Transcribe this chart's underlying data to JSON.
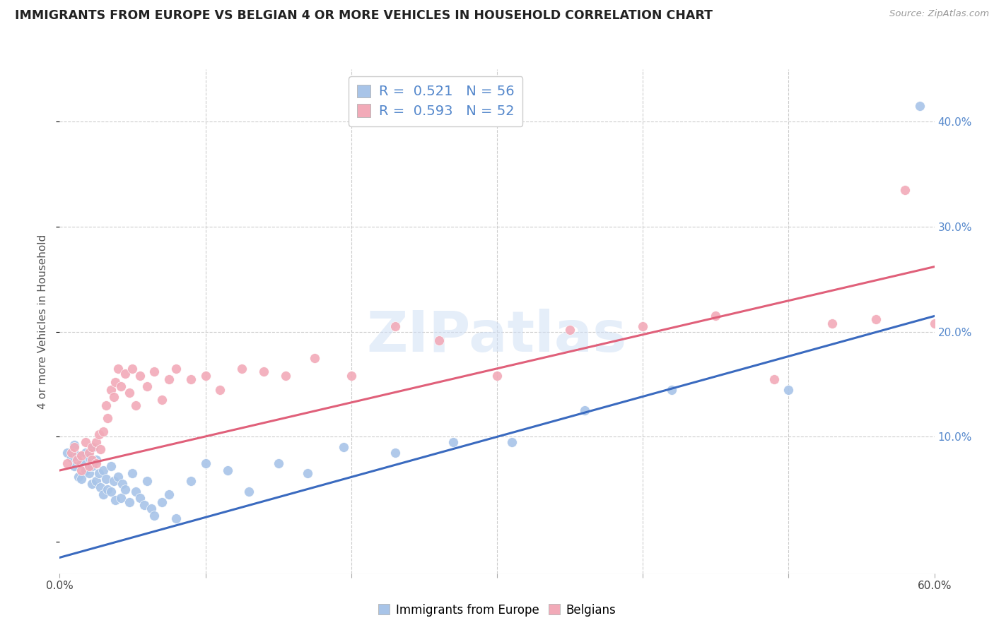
{
  "title": "IMMIGRANTS FROM EUROPE VS BELGIAN 4 OR MORE VEHICLES IN HOUSEHOLD CORRELATION CHART",
  "source": "Source: ZipAtlas.com",
  "ylabel": "4 or more Vehicles in Household",
  "ytick_vals": [
    0.0,
    0.1,
    0.2,
    0.3,
    0.4
  ],
  "ytick_labels": [
    "",
    "10.0%",
    "20.0%",
    "30.0%",
    "40.0%"
  ],
  "xlim": [
    0,
    0.6
  ],
  "ylim": [
    -0.03,
    0.45
  ],
  "legend_r1": "0.521",
  "legend_n1": "56",
  "legend_r2": "0.593",
  "legend_n2": "52",
  "blue_color": "#a8c4e8",
  "pink_color": "#f2aab8",
  "blue_line_color": "#3a6abf",
  "pink_line_color": "#e0607a",
  "label_color": "#5588cc",
  "watermark_text": "ZIPatlas",
  "blue_line_x": [
    0.0,
    0.6
  ],
  "blue_line_y": [
    -0.015,
    0.215
  ],
  "pink_line_x": [
    0.0,
    0.6
  ],
  "pink_line_y": [
    0.068,
    0.262
  ],
  "blue_scatter_x": [
    0.005,
    0.008,
    0.01,
    0.01,
    0.012,
    0.013,
    0.015,
    0.015,
    0.018,
    0.018,
    0.02,
    0.02,
    0.022,
    0.022,
    0.023,
    0.025,
    0.025,
    0.027,
    0.028,
    0.03,
    0.03,
    0.032,
    0.033,
    0.035,
    0.035,
    0.037,
    0.038,
    0.04,
    0.042,
    0.043,
    0.045,
    0.048,
    0.05,
    0.052,
    0.055,
    0.058,
    0.06,
    0.063,
    0.065,
    0.07,
    0.075,
    0.08,
    0.09,
    0.1,
    0.115,
    0.13,
    0.15,
    0.17,
    0.195,
    0.23,
    0.27,
    0.31,
    0.36,
    0.42,
    0.5,
    0.59
  ],
  "blue_scatter_y": [
    0.085,
    0.08,
    0.092,
    0.072,
    0.082,
    0.062,
    0.075,
    0.06,
    0.085,
    0.068,
    0.08,
    0.065,
    0.072,
    0.055,
    0.09,
    0.078,
    0.058,
    0.065,
    0.052,
    0.068,
    0.045,
    0.06,
    0.05,
    0.072,
    0.048,
    0.058,
    0.04,
    0.062,
    0.042,
    0.055,
    0.05,
    0.038,
    0.065,
    0.048,
    0.042,
    0.035,
    0.058,
    0.032,
    0.025,
    0.038,
    0.045,
    0.022,
    0.058,
    0.075,
    0.068,
    0.048,
    0.075,
    0.065,
    0.09,
    0.085,
    0.095,
    0.095,
    0.125,
    0.145,
    0.145,
    0.415
  ],
  "pink_scatter_x": [
    0.005,
    0.008,
    0.01,
    0.012,
    0.015,
    0.015,
    0.018,
    0.02,
    0.02,
    0.022,
    0.022,
    0.025,
    0.025,
    0.027,
    0.028,
    0.03,
    0.032,
    0.033,
    0.035,
    0.037,
    0.038,
    0.04,
    0.042,
    0.045,
    0.048,
    0.05,
    0.052,
    0.055,
    0.06,
    0.065,
    0.07,
    0.075,
    0.08,
    0.09,
    0.1,
    0.11,
    0.125,
    0.14,
    0.155,
    0.175,
    0.2,
    0.23,
    0.26,
    0.3,
    0.35,
    0.4,
    0.45,
    0.49,
    0.53,
    0.56,
    0.58,
    0.6
  ],
  "pink_scatter_y": [
    0.075,
    0.085,
    0.09,
    0.078,
    0.082,
    0.068,
    0.095,
    0.085,
    0.072,
    0.09,
    0.078,
    0.095,
    0.075,
    0.102,
    0.088,
    0.105,
    0.13,
    0.118,
    0.145,
    0.138,
    0.152,
    0.165,
    0.148,
    0.16,
    0.142,
    0.165,
    0.13,
    0.158,
    0.148,
    0.162,
    0.135,
    0.155,
    0.165,
    0.155,
    0.158,
    0.145,
    0.165,
    0.162,
    0.158,
    0.175,
    0.158,
    0.205,
    0.192,
    0.158,
    0.202,
    0.205,
    0.215,
    0.155,
    0.208,
    0.212,
    0.335,
    0.208
  ]
}
